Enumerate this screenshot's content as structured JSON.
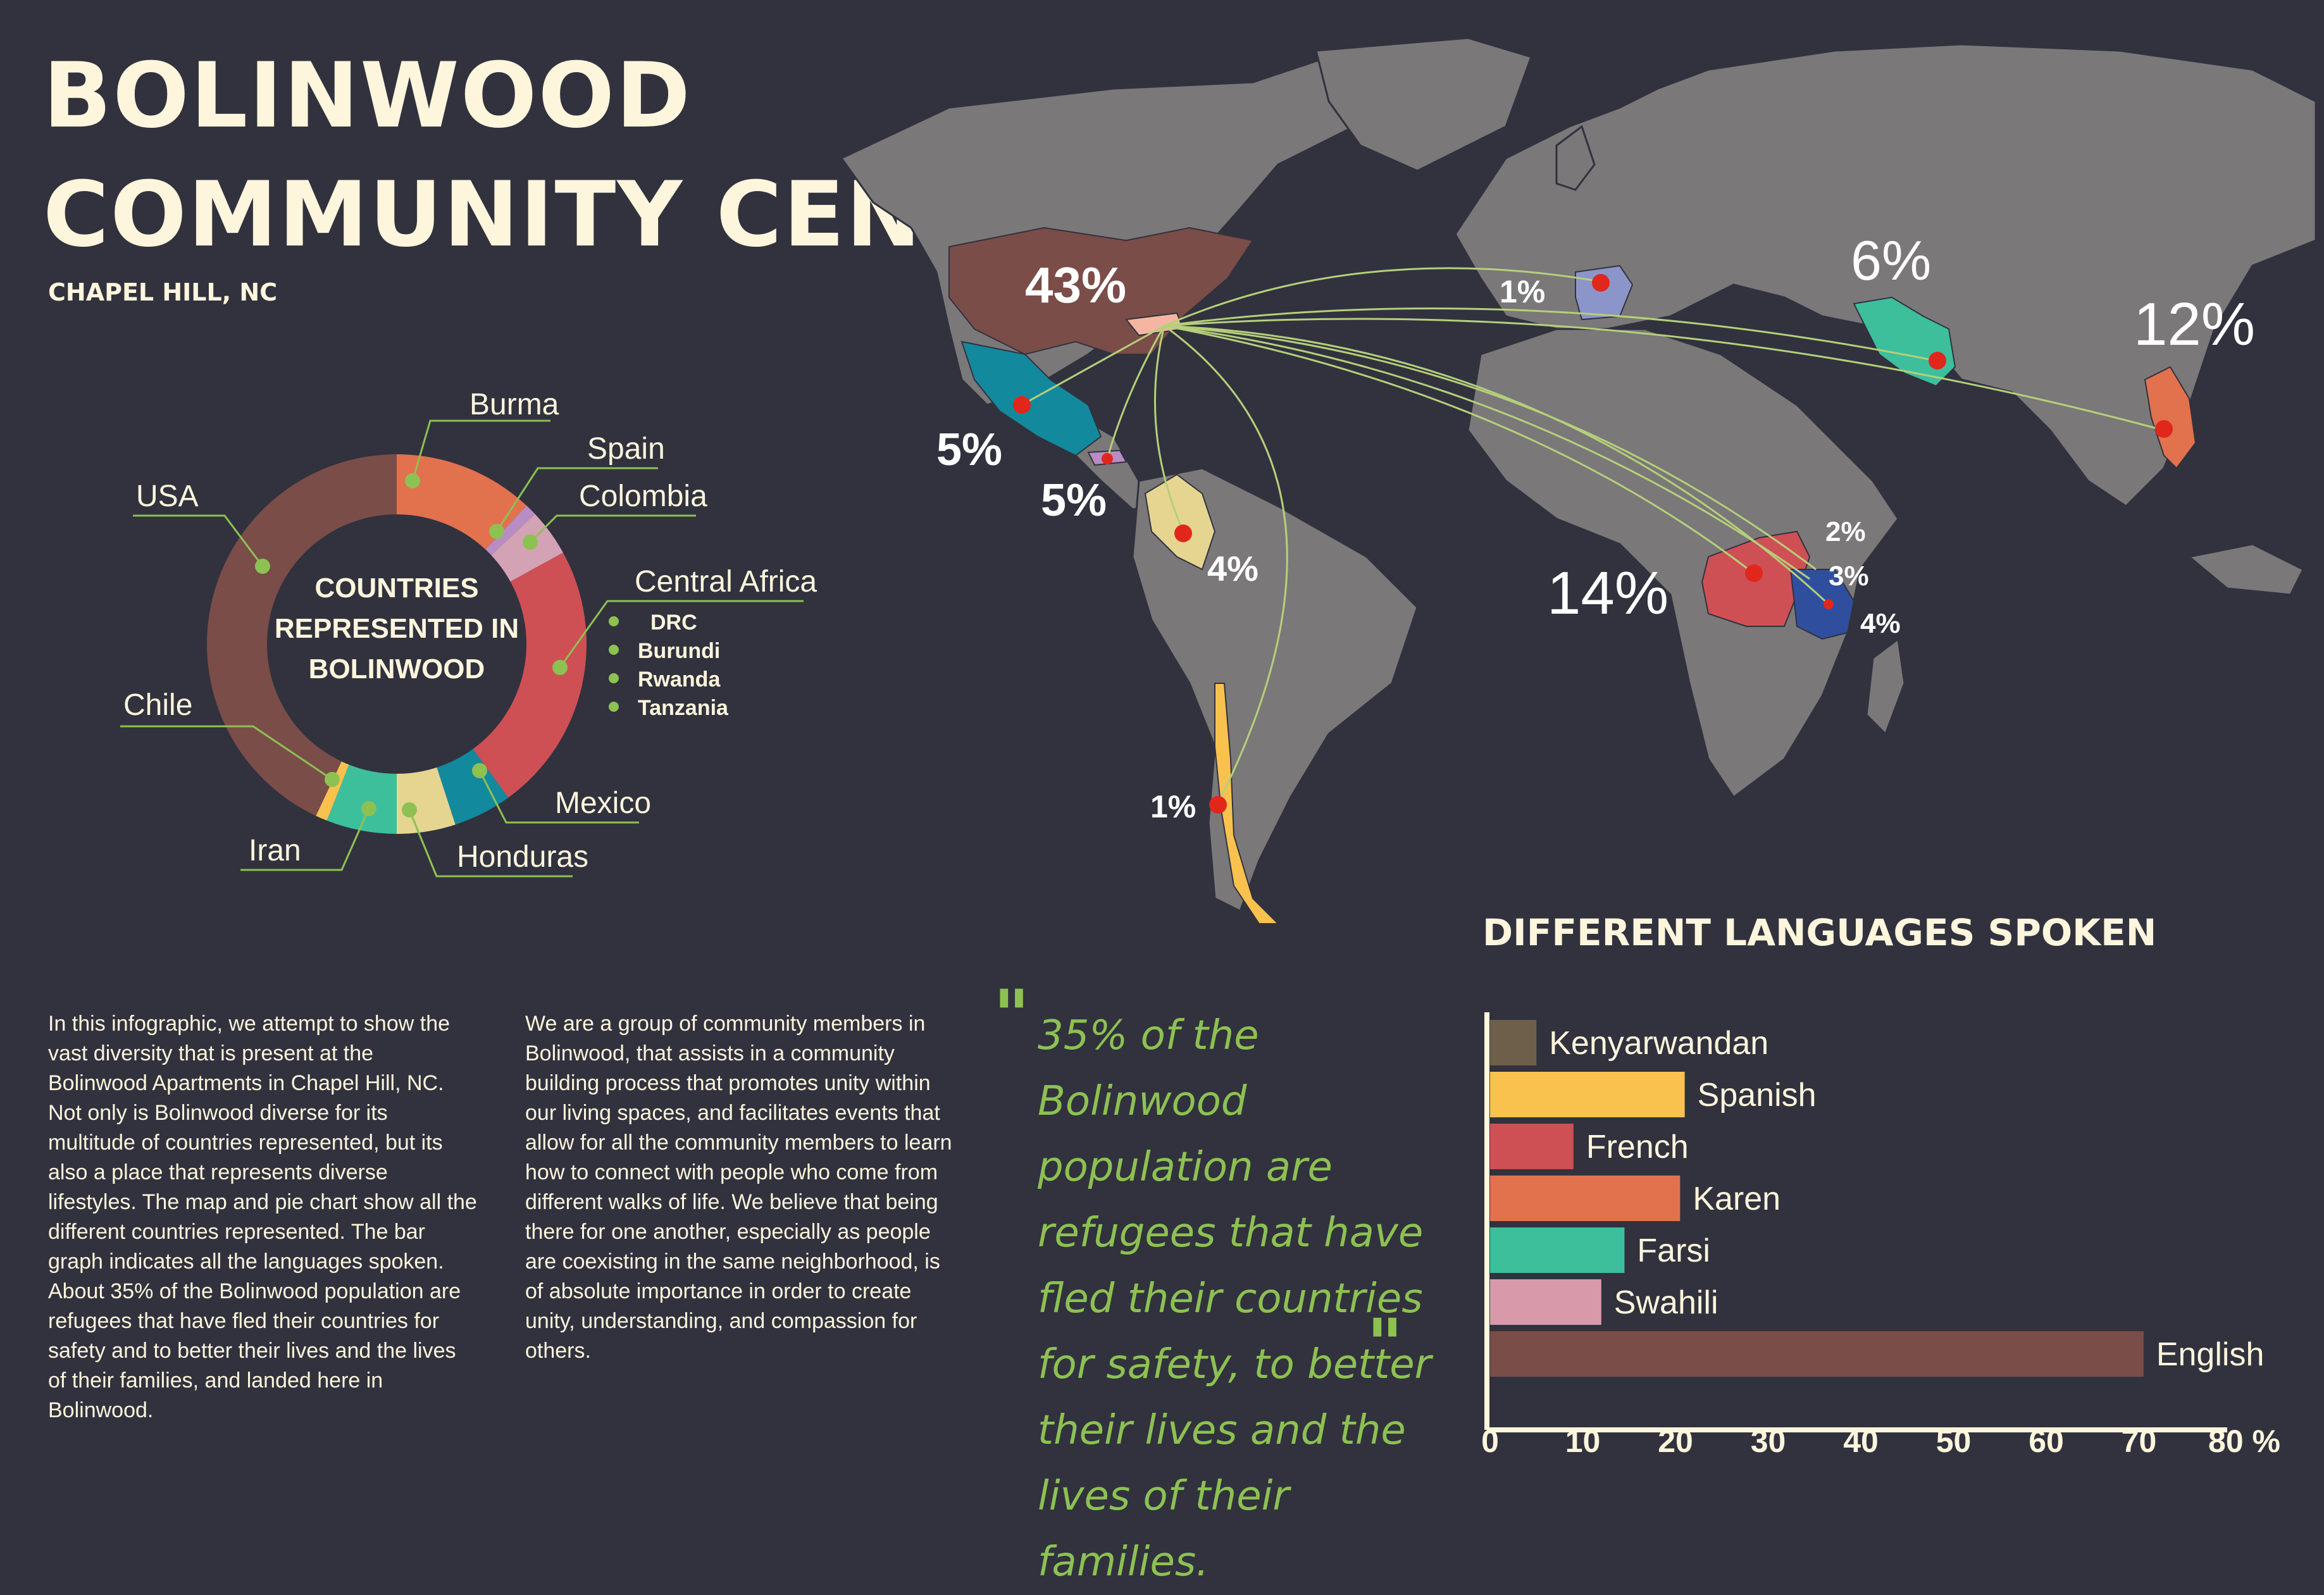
{
  "header": {
    "title_line1": "BOLINWOOD",
    "title_line2": "COMMUNITY CENSUS",
    "location": "CHAPEL HILL, NC"
  },
  "donut": {
    "center_line1": "COUNTRIES",
    "center_line2": "REPRESENTED IN",
    "center_line3": "BOLINWOOD",
    "central_africa_sub": [
      "DRC",
      "Burundi",
      "Rwanda",
      "Tanzania"
    ]
  },
  "map": {
    "labels": [
      "43%",
      "5%",
      "5%",
      "4%",
      "1%",
      "6%",
      "12%",
      "14%",
      "2%",
      "3%",
      "4%",
      "1%"
    ]
  },
  "paragraph1": "In this infographic, we attempt to show the vast diversity that is present at the Bolinwood Apartments in Chapel Hill, NC. Not only is Bolinwood diverse for its multitude of countries represented, but its also a place that represents diverse lifestyles. The map and pie chart show all the different countries represented. The bar graph indicates all the languages spoken. About 35% of the Bolinwood population are refugees that have fled their countries for safety and to better their lives and the lives of their families, and landed here in Bolinwood.",
  "paragraph2": "We are a group of community members in Bolinwood, that assists in a community building process that promotes unity within our living spaces, and facilitates events that allow for all the community members to learn how to connect with people who come from different walks of life. We believe that being there for one another, especially as people are coexisting in the same neighborhood, is of absolute importance in order to create unity, understanding, and compassion for others.",
  "quote": "35% of the Bolinwood population are refugees that have fled their countries for safety, to better their lives and the lives of their families.",
  "colors": {
    "background": "#31323e",
    "cream": "#fdf5dc",
    "green": "#8dc152",
    "land": "#7a7879"
  },
  "chart_data": [
    {
      "type": "pie",
      "title": "COUNTRIES REPRESENTED IN BOLINWOOD",
      "slices": [
        {
          "name": "Burma",
          "value": 12,
          "color": "#e2714e"
        },
        {
          "name": "Spain",
          "value": 1,
          "color": "#b98dc4"
        },
        {
          "name": "Colombia",
          "value": 4,
          "color": "#d3a3b5"
        },
        {
          "name": "Central Africa",
          "value": 23,
          "color": "#ce5055"
        },
        {
          "name": "Mexico",
          "value": 5,
          "color": "#13899e"
        },
        {
          "name": "Honduras",
          "value": 5,
          "color": "#e6d591"
        },
        {
          "name": "Iran",
          "value": 6,
          "color": "#3dbf9c"
        },
        {
          "name": "Chile",
          "value": 1,
          "color": "#f9c24e"
        },
        {
          "name": "USA",
          "value": 43,
          "color": "#7a4d49"
        }
      ]
    },
    {
      "type": "bar",
      "title": "DIFFERENT LANGUAGES SPOKEN",
      "orientation": "horizontal",
      "categories": [
        "Kenyarwandan",
        "Spanish",
        "French",
        "Karen",
        "Farsi",
        "Swahili",
        "English"
      ],
      "values": [
        5,
        21,
        9,
        20.5,
        14.5,
        12,
        70.5
      ],
      "colors": [
        "#6e5f4a",
        "#f9c24e",
        "#ce5055",
        "#e2714e",
        "#3dbf9c",
        "#d89aab",
        "#7a4d49"
      ],
      "xticks": [
        "0",
        "10",
        "20",
        "30",
        "40",
        "50",
        "60",
        "70",
        "80 %"
      ],
      "xlim": [
        0,
        80
      ]
    }
  ]
}
